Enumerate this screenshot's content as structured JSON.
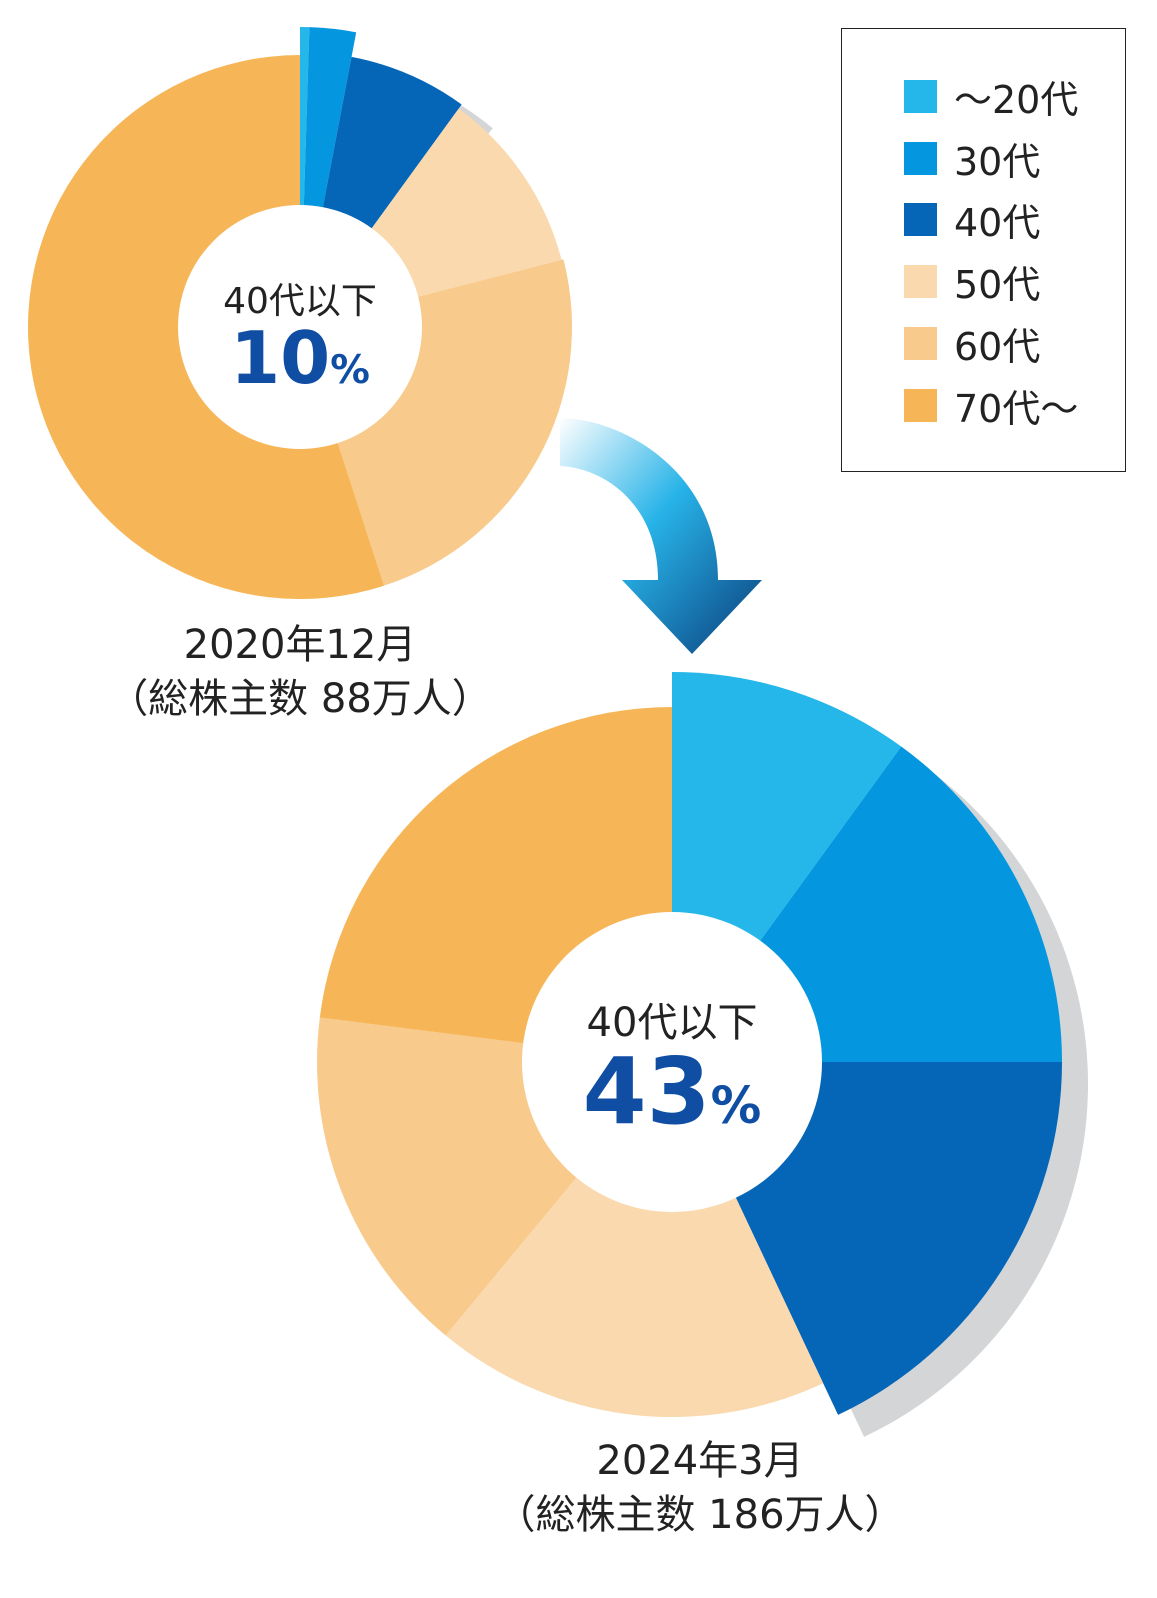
{
  "legend": {
    "items": [
      {
        "label": "～20代",
        "color": "#25b7ea"
      },
      {
        "label": "30代",
        "color": "#0496df"
      },
      {
        "label": "40代",
        "color": "#0566b8"
      },
      {
        "label": "50代",
        "color": "#fad9ae"
      },
      {
        "label": "60代",
        "color": "#f8ca8c"
      },
      {
        "label": "70代～",
        "color": "#f6b658"
      }
    ]
  },
  "arrow_colors": {
    "start": "#ffffff",
    "mid": "#27b3e8",
    "end": "#0b3d7a"
  },
  "shadow_color": "#d4d5d6",
  "center_2020": {
    "label": "40代以下",
    "value": "10",
    "unit": "%"
  },
  "center_2024": {
    "label": "40代以下",
    "value": "43",
    "unit": "%"
  },
  "caption_2020": {
    "line1": "2020年12月",
    "line2": "（総株主数 88万人）"
  },
  "caption_2024": {
    "line1": "2024年3月",
    "line2": "（総株主数 186万人）"
  },
  "chart_data": [
    {
      "type": "pie",
      "variant": "polar-area donut",
      "title": "2020年12月",
      "subtitle": "（総株主数 88万人）",
      "center_label": "40代以下 10%",
      "categories": [
        "～20代",
        "30代",
        "40代",
        "50代",
        "60代",
        "70代～"
      ],
      "values": [
        0.5,
        2.5,
        7,
        11,
        24,
        55
      ],
      "value_unit": "%"
    },
    {
      "type": "pie",
      "variant": "polar-area donut",
      "title": "2024年3月",
      "subtitle": "（総株主数 186万人）",
      "center_label": "40代以下 43%",
      "categories": [
        "～20代",
        "30代",
        "40代",
        "50代",
        "60代",
        "70代～"
      ],
      "values": [
        10,
        15,
        18,
        18,
        16,
        23
      ],
      "value_unit": "%"
    }
  ]
}
